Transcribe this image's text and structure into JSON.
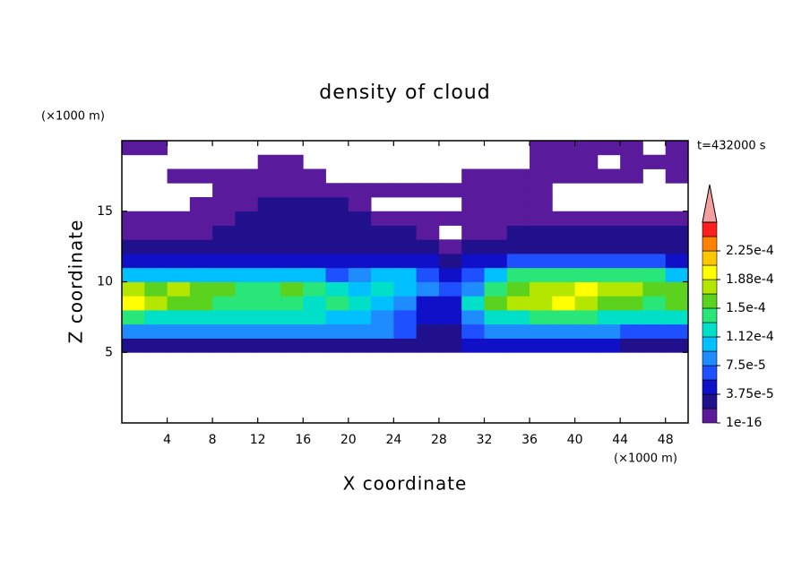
{
  "chart_data": {
    "type": "contour",
    "title": "density of cloud",
    "x_label": "X coordinate",
    "y_label": "Z coordinate",
    "x_unit": "(×1000 m)",
    "y_unit": "(×1000 m)",
    "annotation": "t=432000 s",
    "xlim": [
      0,
      50
    ],
    "ylim": [
      0,
      20
    ],
    "xticks": [
      4,
      8,
      12,
      16,
      20,
      24,
      28,
      32,
      36,
      40,
      44,
      48
    ],
    "yticks": [
      5,
      10,
      15
    ],
    "x": [
      1,
      3,
      5,
      7,
      9,
      11,
      13,
      15,
      17,
      19,
      21,
      23,
      25,
      27,
      29,
      31,
      33,
      35,
      37,
      39,
      41,
      43,
      45,
      47,
      49
    ],
    "y": [
      0.5,
      1.5,
      2.5,
      3.5,
      4.5,
      5.5,
      6.5,
      7.5,
      8.5,
      9.5,
      10.5,
      11.5,
      12.5,
      13.5,
      14.5,
      15.5,
      16.5,
      17.5,
      18.5,
      19.5
    ],
    "values": [
      [
        null,
        null,
        null,
        null,
        null,
        null,
        null,
        null,
        null,
        null,
        null,
        null,
        null,
        null,
        null,
        null,
        null,
        null,
        null,
        null,
        null,
        null,
        null,
        null,
        null
      ],
      [
        null,
        null,
        null,
        null,
        null,
        null,
        null,
        null,
        null,
        null,
        null,
        null,
        null,
        null,
        null,
        null,
        null,
        null,
        null,
        null,
        null,
        null,
        null,
        null,
        null
      ],
      [
        null,
        null,
        null,
        null,
        null,
        null,
        null,
        null,
        null,
        null,
        null,
        null,
        null,
        null,
        null,
        null,
        null,
        null,
        null,
        null,
        null,
        null,
        null,
        null,
        null
      ],
      [
        null,
        null,
        null,
        null,
        null,
        null,
        null,
        null,
        null,
        null,
        null,
        null,
        null,
        null,
        null,
        null,
        null,
        null,
        null,
        null,
        null,
        null,
        null,
        null,
        null
      ],
      [
        null,
        null,
        null,
        null,
        null,
        null,
        null,
        null,
        null,
        null,
        null,
        null,
        null,
        null,
        null,
        null,
        null,
        null,
        null,
        null,
        null,
        null,
        null,
        null,
        null
      ],
      [
        3e-05,
        3e-05,
        3e-05,
        3e-05,
        3e-05,
        3e-05,
        3e-05,
        3e-05,
        3e-05,
        3e-05,
        3e-05,
        3e-05,
        3e-05,
        3e-05,
        3e-05,
        5e-05,
        5e-05,
        5e-05,
        5e-05,
        5e-05,
        5e-05,
        5e-05,
        3e-05,
        3e-05,
        3e-05
      ],
      [
        8.5e-05,
        8.5e-05,
        8.5e-05,
        8.5e-05,
        8.5e-05,
        8.5e-05,
        8.5e-05,
        8.5e-05,
        8.5e-05,
        8.5e-05,
        8.5e-05,
        8.5e-05,
        7e-05,
        3e-05,
        3e-05,
        7e-05,
        8.5e-05,
        8.5e-05,
        8.5e-05,
        8.5e-05,
        8.5e-05,
        8.5e-05,
        7e-05,
        7e-05,
        7e-05
      ],
      [
        0.00014,
        0.00012,
        0.00012,
        0.00012,
        0.00012,
        0.00012,
        0.00012,
        0.00012,
        0.00012,
        0.000105,
        0.000105,
        8.5e-05,
        7e-05,
        5e-05,
        5e-05,
        8.5e-05,
        0.00012,
        0.00012,
        0.00014,
        0.00014,
        0.00014,
        0.00012,
        0.00012,
        0.00012,
        0.00012
      ],
      [
        0.000195,
        0.00018,
        0.00016,
        0.00016,
        0.00014,
        0.00014,
        0.00014,
        0.00014,
        0.00012,
        0.00014,
        0.00012,
        0.000105,
        8.5e-05,
        5e-05,
        5e-05,
        0.00012,
        0.00016,
        0.00018,
        0.00018,
        0.000195,
        0.00018,
        0.00016,
        0.00016,
        0.00014,
        0.00016
      ],
      [
        0.00018,
        0.00016,
        0.00018,
        0.00016,
        0.00016,
        0.00014,
        0.00014,
        0.00016,
        0.00014,
        0.00012,
        0.000105,
        0.00012,
        0.000105,
        8.5e-05,
        7e-05,
        8.5e-05,
        0.00014,
        0.00016,
        0.00018,
        0.00018,
        0.000195,
        0.00018,
        0.00018,
        0.00016,
        0.00016
      ],
      [
        0.000105,
        0.000105,
        0.000105,
        0.000105,
        0.000105,
        0.000105,
        0.000105,
        0.000105,
        0.000105,
        7e-05,
        8.5e-05,
        0.000105,
        0.000105,
        7e-05,
        5e-05,
        7e-05,
        0.000105,
        0.00014,
        0.00014,
        0.00014,
        0.00014,
        0.00014,
        0.00014,
        0.00014,
        0.000105
      ],
      [
        5e-05,
        5e-05,
        5e-05,
        5e-05,
        5e-05,
        5e-05,
        5e-05,
        5e-05,
        5e-05,
        5e-05,
        5e-05,
        5e-05,
        5e-05,
        5e-05,
        3e-05,
        5e-05,
        5e-05,
        7e-05,
        7e-05,
        7e-05,
        7e-05,
        7e-05,
        7e-05,
        7e-05,
        5e-05
      ],
      [
        3e-05,
        3e-05,
        3e-05,
        3e-05,
        3e-05,
        3e-05,
        3e-05,
        3e-05,
        3e-05,
        3e-05,
        3e-05,
        3e-05,
        3e-05,
        3e-05,
        1e-05,
        3e-05,
        3e-05,
        3e-05,
        3e-05,
        3e-05,
        3e-05,
        3e-05,
        3e-05,
        3e-05,
        3e-05
      ],
      [
        1e-05,
        1e-05,
        1e-05,
        1e-05,
        3e-05,
        3e-05,
        3e-05,
        3e-05,
        3e-05,
        3e-05,
        3e-05,
        3e-05,
        3e-05,
        1e-05,
        null,
        1e-05,
        1e-05,
        3e-05,
        3e-05,
        3e-05,
        3e-05,
        3e-05,
        3e-05,
        3e-05,
        3e-05
      ],
      [
        1e-05,
        1e-05,
        1e-05,
        1e-05,
        1e-05,
        3e-05,
        3e-05,
        3e-05,
        3e-05,
        3e-05,
        3e-05,
        1e-05,
        1e-05,
        1e-05,
        1e-05,
        1e-05,
        1e-05,
        1e-05,
        1e-05,
        1e-05,
        1e-05,
        1e-05,
        1e-05,
        1e-05,
        1e-05
      ],
      [
        null,
        null,
        null,
        1e-05,
        1e-05,
        1e-05,
        3e-05,
        3e-05,
        3e-05,
        3e-05,
        1e-05,
        null,
        null,
        null,
        null,
        1e-05,
        1e-05,
        1e-05,
        1e-05,
        null,
        null,
        null,
        null,
        null,
        null
      ],
      [
        null,
        null,
        null,
        null,
        1e-05,
        1e-05,
        1e-05,
        1e-05,
        1e-05,
        1e-05,
        1e-05,
        1e-05,
        1e-05,
        1e-05,
        1e-05,
        1e-05,
        1e-05,
        1e-05,
        1e-05,
        null,
        null,
        null,
        null,
        null,
        null
      ],
      [
        null,
        null,
        1e-05,
        1e-05,
        1e-05,
        1e-05,
        1e-05,
        1e-05,
        1e-05,
        null,
        null,
        null,
        null,
        null,
        null,
        1e-05,
        1e-05,
        1e-05,
        1e-05,
        1e-05,
        1e-05,
        1e-05,
        1e-05,
        null,
        1e-05
      ],
      [
        null,
        null,
        null,
        null,
        null,
        null,
        1e-05,
        1e-05,
        null,
        null,
        null,
        null,
        null,
        null,
        null,
        null,
        null,
        null,
        1e-05,
        1e-05,
        1e-05,
        null,
        1e-05,
        1e-05,
        1e-05
      ],
      [
        1e-05,
        1e-05,
        null,
        null,
        null,
        null,
        null,
        null,
        null,
        null,
        null,
        null,
        null,
        null,
        null,
        null,
        null,
        null,
        1e-05,
        1e-05,
        1e-05,
        1e-05,
        1e-05,
        null,
        1e-05
      ]
    ],
    "levels": [
      1e-16,
      1.875e-05,
      3.75e-05,
      5.625e-05,
      7.5e-05,
      9.375e-05,
      0.0001125,
      0.00013125,
      0.00015,
      0.00016875,
      0.0001875,
      0.00020625,
      0.000225,
      0.00024375,
      0.0002625
    ],
    "colors": [
      "#5a1a9c",
      "#20108c",
      "#1010c8",
      "#1e50ff",
      "#1e8cff",
      "#00c0ff",
      "#00e0c8",
      "#28e678",
      "#5ad21e",
      "#b4e600",
      "#ffff00",
      "#ffc800",
      "#ff8200",
      "#ff1e1e"
    ],
    "extend_color": "#f4a0a0",
    "colorbar_ticks": [
      1e-16,
      {
        "value": 3.75e-05,
        "label": "3.75e-5"
      },
      {
        "value": 7.5e-05,
        "label": "7.5e-5"
      },
      {
        "value": 0.0001125,
        "label": "1.12e-4"
      },
      {
        "value": 0.00015,
        "label": "1.5e-4"
      },
      {
        "value": 0.0001875,
        "label": "1.88e-4"
      },
      {
        "value": 0.000225,
        "label": "2.25e-4"
      }
    ]
  }
}
